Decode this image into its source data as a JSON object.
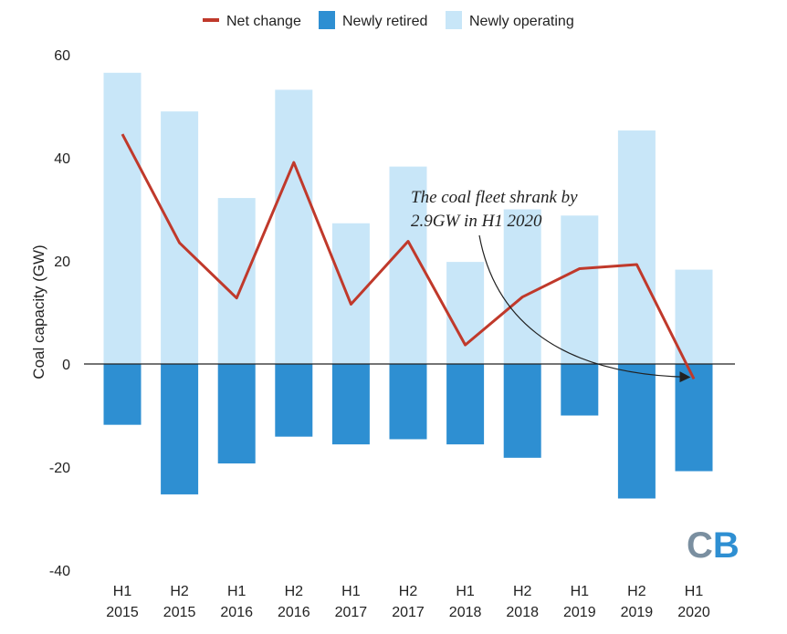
{
  "chart_data": {
    "type": "bar",
    "categories": [
      "H1\n2015",
      "H2\n2015",
      "H1\n2016",
      "H2\n2016",
      "H1\n2017",
      "H2\n2017",
      "H1\n2018",
      "H2\n2018",
      "H1\n2019",
      "H2\n2019",
      "H1\n2020"
    ],
    "series": [
      {
        "name": "Newly operating",
        "type": "bar",
        "color": "#c8e6f8",
        "values": [
          56.5,
          49.0,
          32.2,
          53.2,
          27.3,
          38.3,
          19.8,
          30.0,
          28.8,
          45.3,
          18.3
        ]
      },
      {
        "name": "Newly retired",
        "type": "bar",
        "color": "#2e8fd2",
        "values": [
          -11.8,
          -25.3,
          -19.3,
          -14.1,
          -15.6,
          -14.6,
          -15.6,
          -18.2,
          -10.0,
          -26.1,
          -20.8
        ]
      },
      {
        "name": "Net change",
        "type": "line",
        "color": "#c0392b",
        "values": [
          44.6,
          23.5,
          12.8,
          39.1,
          11.6,
          23.8,
          3.7,
          13.0,
          18.5,
          19.3,
          -2.9
        ]
      }
    ],
    "legend_order": [
      "Net change",
      "Newly retired",
      "Newly operating"
    ],
    "ylabel": "Coal capacity (GW)",
    "xlabel": "",
    "ylim": [
      -40,
      60
    ],
    "yticks": [
      "60",
      "40",
      "20",
      "0",
      "-20",
      "-40"
    ],
    "legend_position": "top-center",
    "annotation": {
      "lines": [
        "The coal fleet shrank by",
        "2.9GW in H1 2020"
      ],
      "points_to": "H1\n2020"
    }
  },
  "logo": {
    "text": "CB",
    "colors": [
      "#7a8fa0",
      "#2e8fd2"
    ]
  },
  "colors": {
    "zero_line": "#222222",
    "axis_tick": "#222222"
  }
}
